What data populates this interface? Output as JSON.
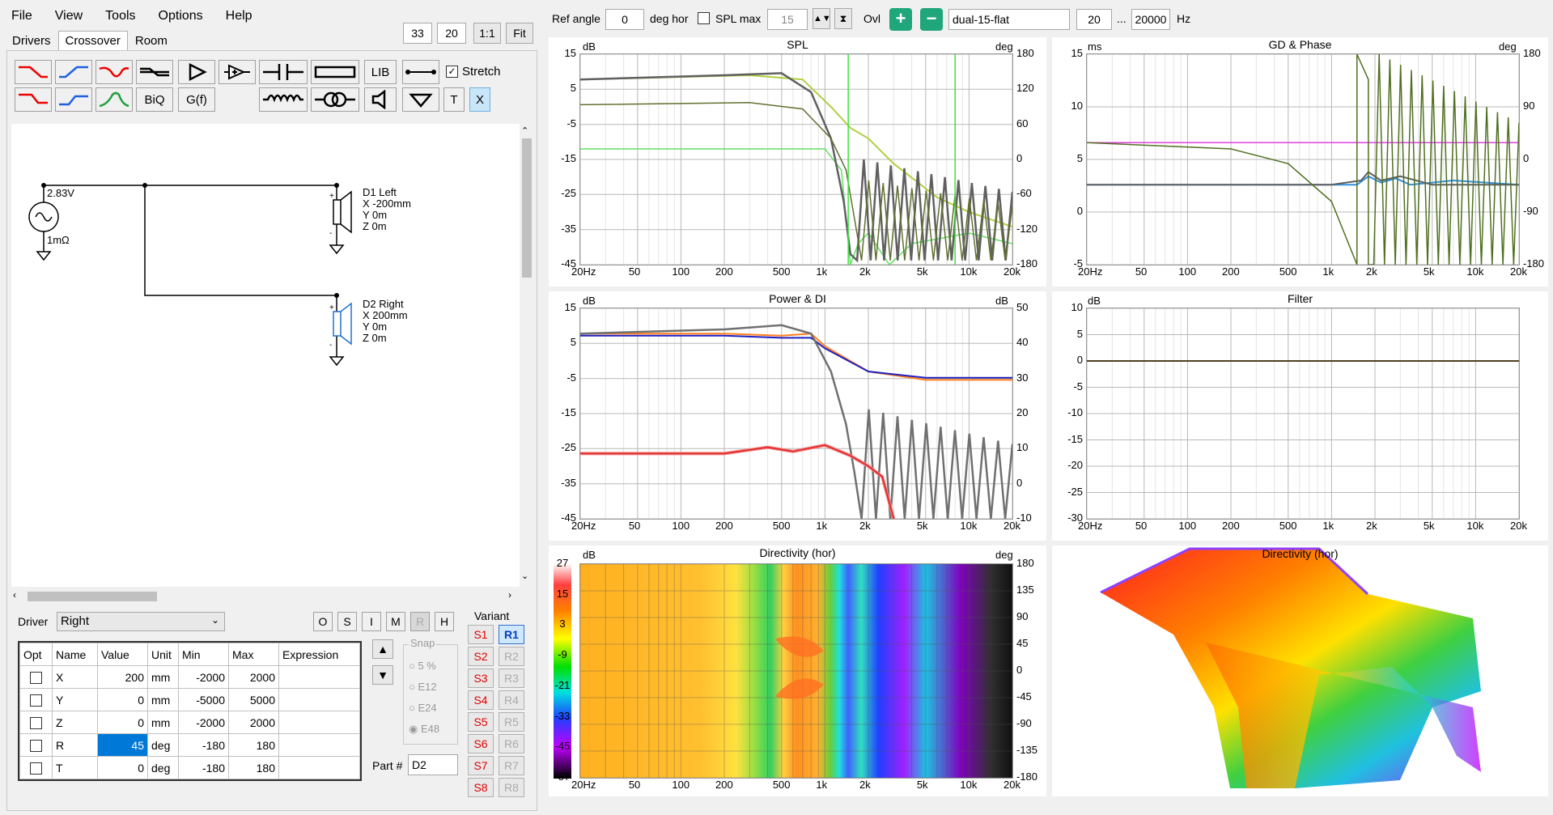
{
  "menu": [
    "File",
    "View",
    "Tools",
    "Options",
    "Help"
  ],
  "zoom": {
    "a": "33",
    "b": "20",
    "one": "1:1",
    "fit": "Fit"
  },
  "tabs": [
    "Drivers",
    "Crossover",
    "Room"
  ],
  "tools": {
    "stretch": "Stretch",
    "lib": "LIB",
    "biq": "BiQ",
    "gf": "G(f)",
    "t": "T",
    "x": "X"
  },
  "schematic": {
    "voltage": "2.83V",
    "resistance": "1mΩ",
    "d1": [
      "D1 Left",
      "X -200mm",
      "Y 0m",
      "Z 0m"
    ],
    "d2": [
      "D2 Right",
      "X 200mm",
      "Y 0m",
      "Z 0m"
    ]
  },
  "driver": {
    "label": "Driver",
    "value": "Right",
    "flags": [
      "O",
      "S",
      "I",
      "M",
      "R",
      "H"
    ]
  },
  "params": {
    "headers": [
      "Opt",
      "Name",
      "Value",
      "Unit",
      "Min",
      "Max",
      "Expression"
    ],
    "rows": [
      [
        "X",
        "200",
        "mm",
        "-2000",
        "2000"
      ],
      [
        "Y",
        "0",
        "mm",
        "-5000",
        "5000"
      ],
      [
        "Z",
        "0",
        "mm",
        "-2000",
        "2000"
      ],
      [
        "R",
        "45",
        "deg",
        "-180",
        "180"
      ],
      [
        "T",
        "0",
        "deg",
        "-180",
        "180"
      ]
    ]
  },
  "snap": {
    "label": "Snap",
    "options": [
      "5 %",
      "E12",
      "E24",
      "E48"
    ]
  },
  "part": {
    "label": "Part #",
    "value": "D2"
  },
  "variant": {
    "label": "Variant",
    "s": [
      "S1",
      "S2",
      "S3",
      "S4",
      "S5",
      "S6",
      "S7",
      "S8"
    ],
    "r": [
      "R1",
      "R2",
      "R3",
      "R4",
      "R5",
      "R6",
      "R7",
      "R8"
    ]
  },
  "top": {
    "ref_label": "Ref angle",
    "ref_value": "0",
    "deg_hor": "deg hor",
    "splmax": "SPL max",
    "splmax_value": "15",
    "ovl": "Ovl",
    "curve": "dual-15-flat",
    "f_lo": "20",
    "dots": "...",
    "f_hi": "20000",
    "hz": "Hz"
  },
  "xticks": [
    "20Hz",
    "50",
    "100",
    "200",
    "500",
    "1k",
    "2k",
    "5k",
    "10k",
    "20k"
  ],
  "spl": {
    "title": "SPL",
    "lunit": "dB",
    "runit": "deg",
    "ly": [
      "15",
      "5",
      "-5",
      "-15",
      "-25",
      "-35",
      "-45"
    ],
    "ry": [
      "180",
      "120",
      "60",
      "0",
      "-60",
      "-120",
      "-180"
    ]
  },
  "gd": {
    "title": "GD & Phase",
    "lunit": "ms",
    "runit": "deg",
    "ly": [
      "15",
      "10",
      "5",
      "0",
      "-5"
    ],
    "ry": [
      "180",
      "90",
      "0",
      "-90",
      "-180"
    ]
  },
  "power": {
    "title": "Power & DI",
    "lunit": "dB",
    "runit": "dB",
    "ly": [
      "15",
      "5",
      "-5",
      "-15",
      "-25",
      "-35",
      "-45"
    ],
    "ry": [
      "50",
      "40",
      "30",
      "20",
      "10",
      "0",
      "-10"
    ]
  },
  "filter": {
    "title": "Filter",
    "lunit": "dB",
    "ly": [
      "10",
      "5",
      "0",
      "-5",
      "-10",
      "-15",
      "-20",
      "-25",
      "-30"
    ]
  },
  "dir": {
    "title": "Directivity (hor)",
    "lunit": "dB",
    "runit": "deg",
    "scale": [
      "27",
      "15",
      "3",
      "-9",
      "-21",
      "-33",
      "-45",
      "-57"
    ],
    "ry": [
      "180",
      "135",
      "90",
      "45",
      "0",
      "-45",
      "-90",
      "-135",
      "-180"
    ]
  },
  "dir3d": {
    "title": "Directivity (hor)"
  },
  "colors": {
    "accent": "#0078d7",
    "red": "#e00000",
    "blue": "#2060c0"
  }
}
